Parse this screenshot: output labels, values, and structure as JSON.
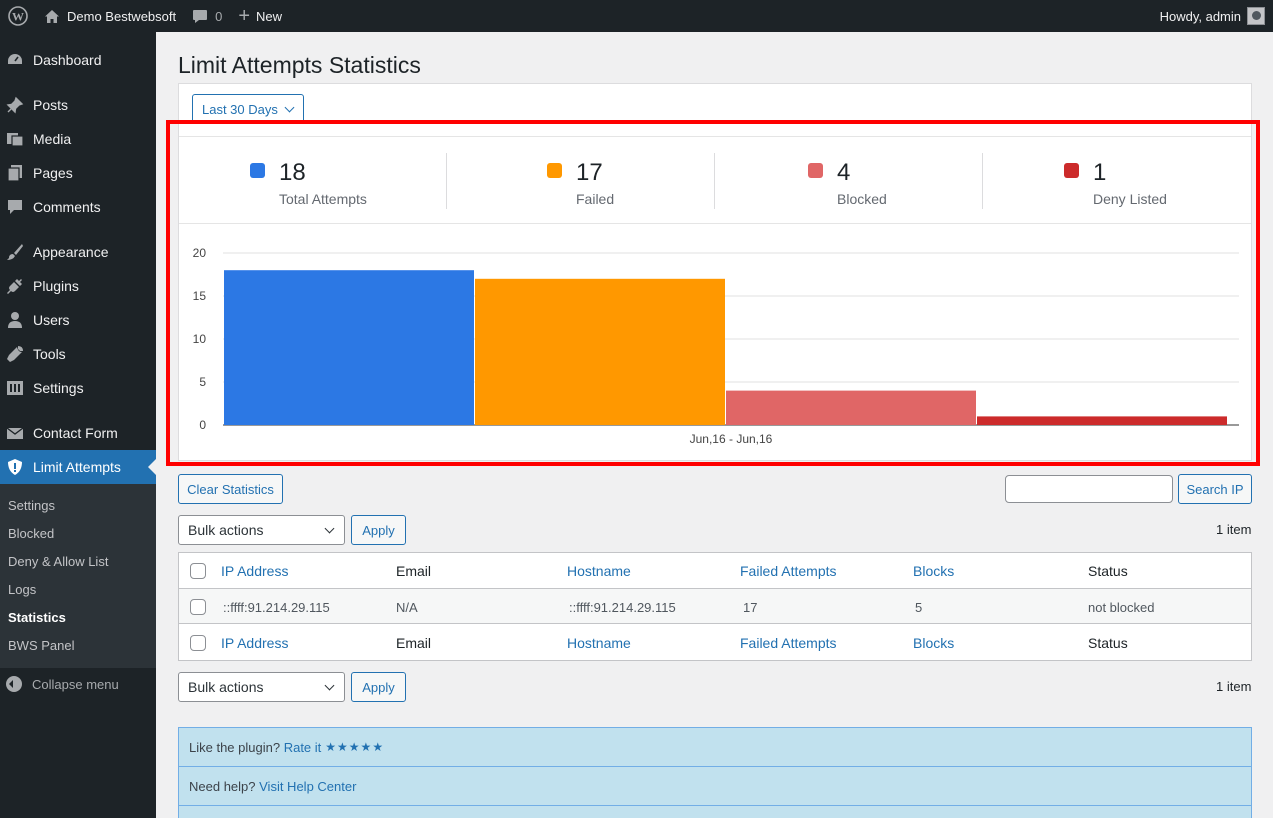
{
  "adminbar": {
    "site_name": "Demo Bestwebsoft",
    "comments_count": "0",
    "new_label": "New",
    "greeting": "Howdy, admin"
  },
  "sidebar": {
    "items": [
      {
        "label": "Dashboard",
        "icon": "dashboard-icon"
      },
      {
        "label": "Posts",
        "icon": "pin-icon"
      },
      {
        "label": "Media",
        "icon": "media-icon"
      },
      {
        "label": "Pages",
        "icon": "pages-icon"
      },
      {
        "label": "Comments",
        "icon": "comment-icon"
      },
      {
        "label": "Appearance",
        "icon": "brush-icon"
      },
      {
        "label": "Plugins",
        "icon": "plug-icon"
      },
      {
        "label": "Users",
        "icon": "user-icon"
      },
      {
        "label": "Tools",
        "icon": "wrench-icon"
      },
      {
        "label": "Settings",
        "icon": "settings-icon"
      },
      {
        "label": "Contact Form",
        "icon": "envelope-icon"
      },
      {
        "label": "Limit Attempts",
        "icon": "shield-icon"
      }
    ],
    "submenu": [
      "Settings",
      "Blocked",
      "Deny & Allow List",
      "Logs",
      "Statistics",
      "BWS Panel"
    ],
    "collapse_label": "Collapse menu"
  },
  "page": {
    "title": "Limit Attempts Statistics",
    "period": "Last 30 Days"
  },
  "stats": [
    {
      "value": "18",
      "label": "Total Attempts",
      "color": "#2c78e4"
    },
    {
      "value": "17",
      "label": "Failed",
      "color": "#ff9800"
    },
    {
      "value": "4",
      "label": "Blocked",
      "color": "#e06666"
    },
    {
      "value": "1",
      "label": "Deny Listed",
      "color": "#cc2b2b"
    }
  ],
  "chart_data": {
    "type": "bar",
    "categories": [
      "Jun,16 - Jun,16"
    ],
    "series": [
      {
        "values": [
          18
        ],
        "color": "#2c78e4"
      },
      {
        "values": [
          17
        ],
        "color": "#ff9800"
      },
      {
        "values": [
          4
        ],
        "color": "#e06666"
      },
      {
        "values": [
          1
        ],
        "color": "#cc2b2b"
      }
    ],
    "yticks": [
      0,
      5,
      10,
      15,
      20
    ],
    "ylim": [
      0,
      20
    ],
    "grid": true
  },
  "actions": {
    "clear_stats": "Clear Statistics",
    "search_ip": "Search IP",
    "search_value": "",
    "bulk_actions": "Bulk actions",
    "apply": "Apply",
    "item_count": "1 item"
  },
  "table": {
    "columns": [
      "IP Address",
      "Email",
      "Hostname",
      "Failed Attempts",
      "Blocks",
      "Status"
    ],
    "rows": [
      [
        "::ffff:91.214.29.115",
        "N/A",
        "::ffff:91.214.29.115",
        "17",
        "5",
        "not blocked"
      ]
    ]
  },
  "notices": {
    "like_text": "Like the plugin?",
    "rate_link": "Rate it",
    "stars": "★★★★★",
    "help_text": "Need help?",
    "help_link": "Visit Help Center"
  }
}
